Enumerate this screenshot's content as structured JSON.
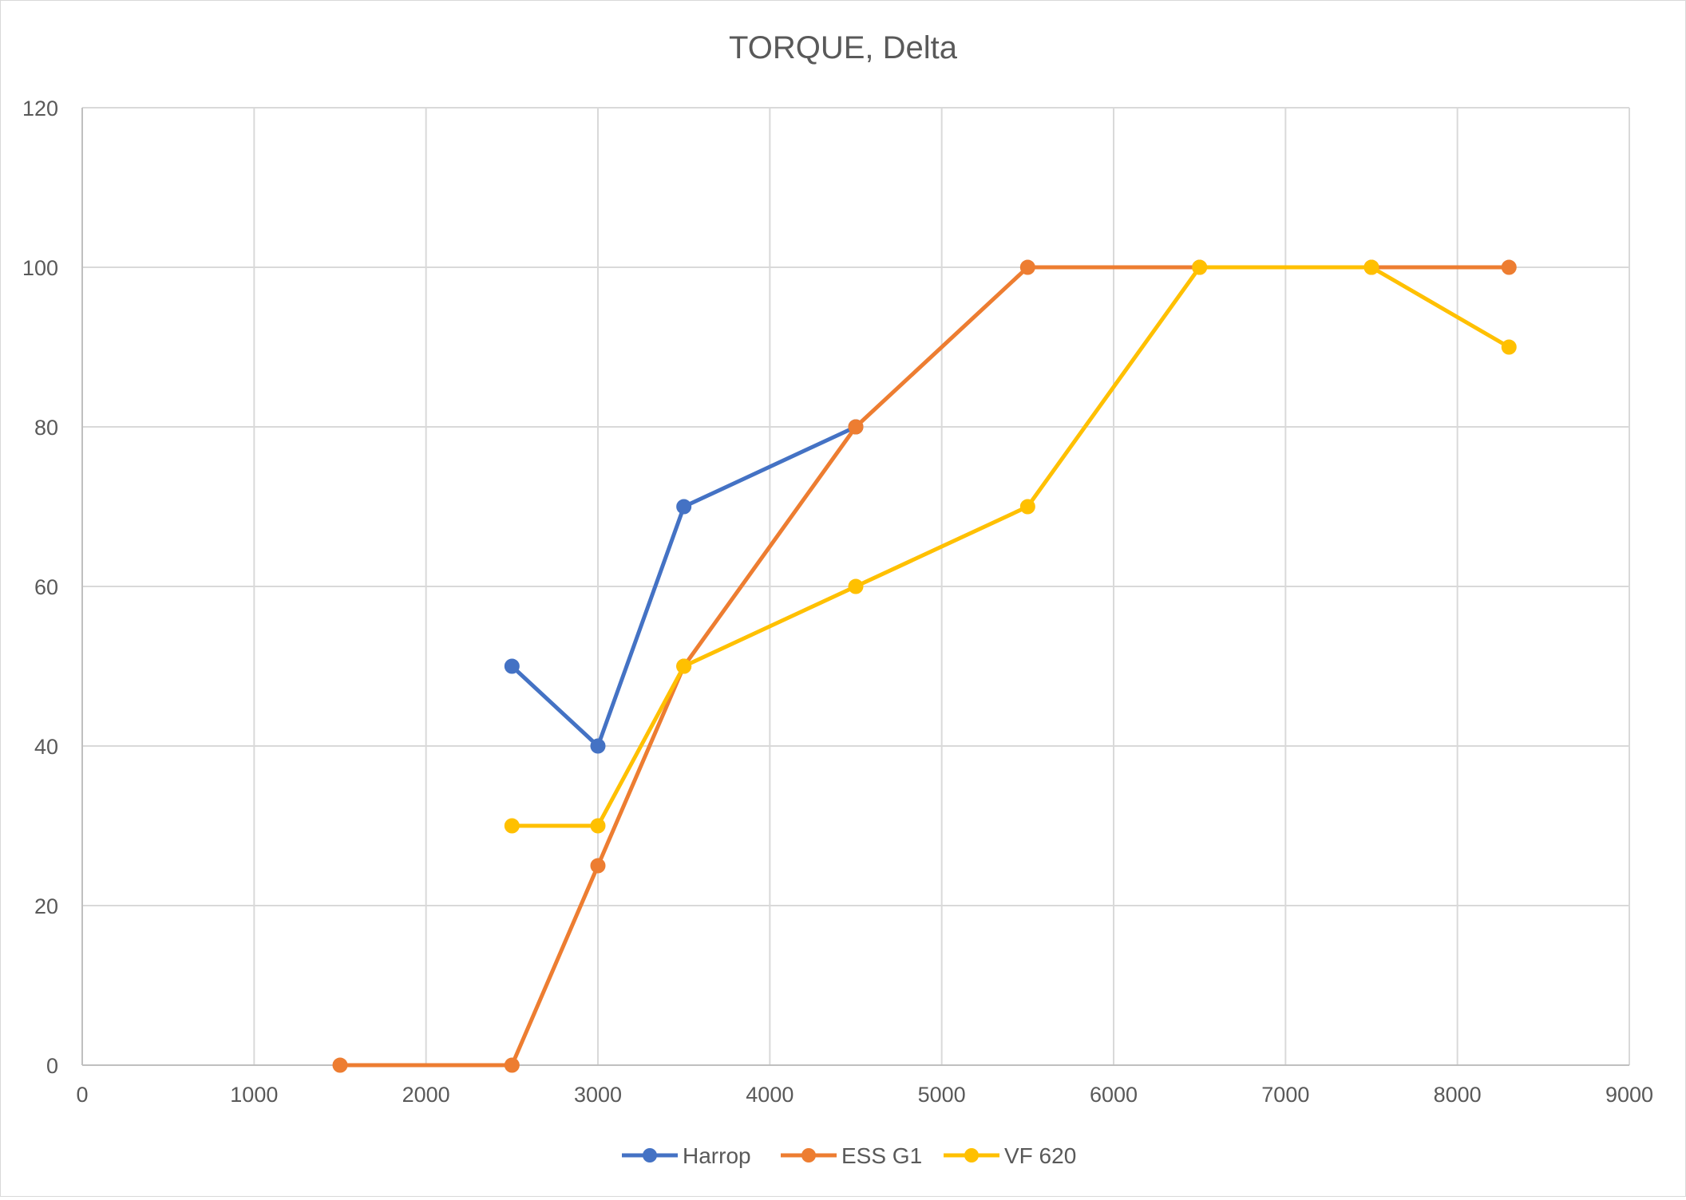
{
  "chart_data": {
    "type": "scatter",
    "title": "TORQUE, Delta",
    "xlabel": "",
    "ylabel": "",
    "xlim": [
      0,
      9000
    ],
    "ylim": [
      0,
      120
    ],
    "x_ticks": [
      "0",
      "1000",
      "2000",
      "3000",
      "4000",
      "5000",
      "6000",
      "7000",
      "8000",
      "9000"
    ],
    "y_ticks": [
      "0",
      "20",
      "40",
      "60",
      "80",
      "100",
      "120"
    ],
    "grid": true,
    "legend_position": "bottom",
    "series": [
      {
        "name": "Harrop",
        "color": "#4472c4",
        "points": [
          [
            2500,
            50
          ],
          [
            3000,
            40
          ],
          [
            3500,
            70
          ],
          [
            4500,
            80
          ]
        ]
      },
      {
        "name": "ESS G1",
        "color": "#ed7d31",
        "points": [
          [
            1500,
            0
          ],
          [
            2500,
            0
          ],
          [
            3000,
            25
          ],
          [
            3500,
            50
          ],
          [
            4500,
            80
          ],
          [
            5500,
            100
          ],
          [
            6500,
            100
          ],
          [
            7500,
            100
          ],
          [
            8300,
            100
          ]
        ]
      },
      {
        "name": "VF 620",
        "color": "#ffc000",
        "points": [
          [
            2500,
            30
          ],
          [
            3000,
            30
          ],
          [
            3500,
            50
          ],
          [
            4500,
            60
          ],
          [
            5500,
            70
          ],
          [
            6500,
            100
          ],
          [
            7500,
            100
          ],
          [
            8300,
            90
          ]
        ]
      }
    ]
  }
}
